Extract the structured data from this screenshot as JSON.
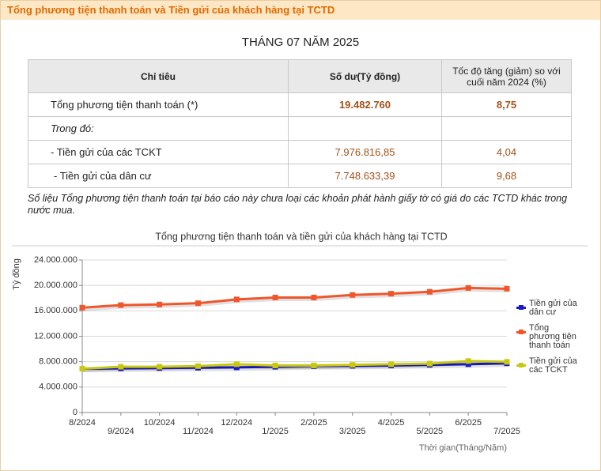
{
  "header": {
    "title": "Tổng phương tiện thanh toán và Tiền gửi của khách hàng tại TCTD"
  },
  "subtitle": "THÁNG 07 NĂM 2025",
  "table": {
    "columns": [
      "Chỉ tiêu",
      "Số dư(Tỷ đồng)",
      "Tốc độ tăng (giảm) so với cuối năm 2024 (%)"
    ],
    "rows": [
      [
        "Tổng phương tiện thanh toán (*)",
        "19.482.760",
        "8,75"
      ],
      [
        "Trong đó:"
      ],
      [
        "- Tiền gửi của các TCKT",
        "7.976.816,85",
        "4,04"
      ],
      [
        "- Tiền gửi của dân cư",
        "7.748.633,39",
        "9,68"
      ]
    ]
  },
  "note": "Số liệu Tổng phương tiện thanh toán tại báo cáo này chưa loại các khoản phát hành giấy tờ có giá do các TCTD khác trong nước mua.",
  "chart_data": {
    "type": "line",
    "title": "Tổng phương tiện thanh toán và tiền gửi của khách hàng tại TCTD",
    "y_label": "Tỷ đồng",
    "x_label": "Thời gian(Tháng/Năm)",
    "categories": [
      "8/2024",
      "9/2024",
      "10/2024",
      "11/2024",
      "12/2024",
      "1/2025",
      "2/2025",
      "3/2025",
      "4/2025",
      "5/2025",
      "6/2025",
      "7/2025"
    ],
    "ylim": [
      0,
      24000000
    ],
    "yticks": [
      0,
      {
        "value": 4000000,
        "label": "4.000.000"
      },
      {
        "value": 8000000,
        "label": "8.000.000"
      },
      {
        "value": 12000000,
        "label": "12.000.000"
      },
      {
        "value": 16000000,
        "label": "16.000.000"
      },
      {
        "value": 20000000,
        "label": "20.000.000"
      },
      {
        "value": 24000000,
        "label": "24.000.000"
      }
    ],
    "grid": true,
    "legend": "right",
    "series": [
      {
        "name": "Tiền gửi của dân cư",
        "color": "#1a1acc",
        "values": [
          6900000,
          6950000,
          7000000,
          7050000,
          7100000,
          7200000,
          7300000,
          7350000,
          7400000,
          7500000,
          7600000,
          7748633
        ]
      },
      {
        "name": "Tổng phương tiện thanh toán",
        "color": "#f0562a",
        "values": [
          16500000,
          16900000,
          17000000,
          17200000,
          17800000,
          18100000,
          18100000,
          18500000,
          18700000,
          19000000,
          19600000,
          19482760
        ]
      },
      {
        "name": "Tiền gửi của các TCKT",
        "color": "#c8c810",
        "values": [
          6900000,
          7200000,
          7200000,
          7300000,
          7600000,
          7400000,
          7400000,
          7500000,
          7600000,
          7700000,
          8100000,
          7976817
        ]
      }
    ]
  }
}
